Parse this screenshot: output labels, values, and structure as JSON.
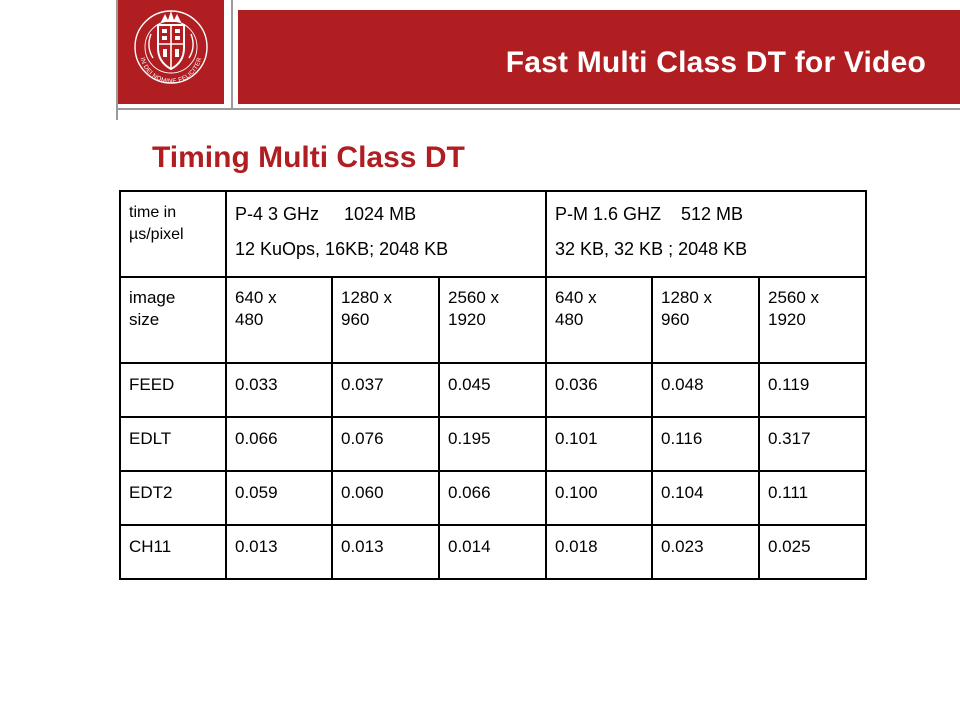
{
  "header": {
    "title": "Fast Multi Class DT for Video",
    "logo": {
      "icon": "university-seal-icon",
      "motto": "IN DEI NOMINE FELICITER"
    },
    "brand_color": "#b01e22"
  },
  "subtitle": "Timing Multi Class DT",
  "table": {
    "unit_label_line1": "time in",
    "unit_label_line2": "µs/pixel",
    "machines": [
      {
        "line1": "P-4 3 GHz     1024 MB",
        "line2": "12 KuOps, 16KB; 2048 KB"
      },
      {
        "line1": "P-M 1.6 GHZ    512 MB",
        "line2": "32 KB, 32 KB ; 2048 KB"
      }
    ],
    "size_label_line1": "image",
    "size_label_line2": "size",
    "sizes": [
      [
        "640 x",
        "480"
      ],
      [
        "1280 x",
        "960"
      ],
      [
        "2560 x",
        "1920"
      ],
      [
        "640 x",
        "480"
      ],
      [
        "1280 x",
        "960"
      ],
      [
        "2560 x",
        "1920"
      ]
    ],
    "rows": [
      {
        "label": "FEED",
        "values": [
          "0.033",
          "0.037",
          "0.045",
          "0.036",
          "0.048",
          "0.119"
        ]
      },
      {
        "label": "EDLT",
        "values": [
          "0.066",
          "0.076",
          "0.195",
          "0.101",
          "0.116",
          "0.317"
        ]
      },
      {
        "label": "EDT2",
        "values": [
          "0.059",
          "0.060",
          "0.066",
          "0.100",
          "0.104",
          "0.111"
        ]
      },
      {
        "label": "CH11",
        "values": [
          "0.013",
          "0.013",
          "0.014",
          "0.018",
          "0.023",
          "0.025"
        ]
      }
    ]
  }
}
